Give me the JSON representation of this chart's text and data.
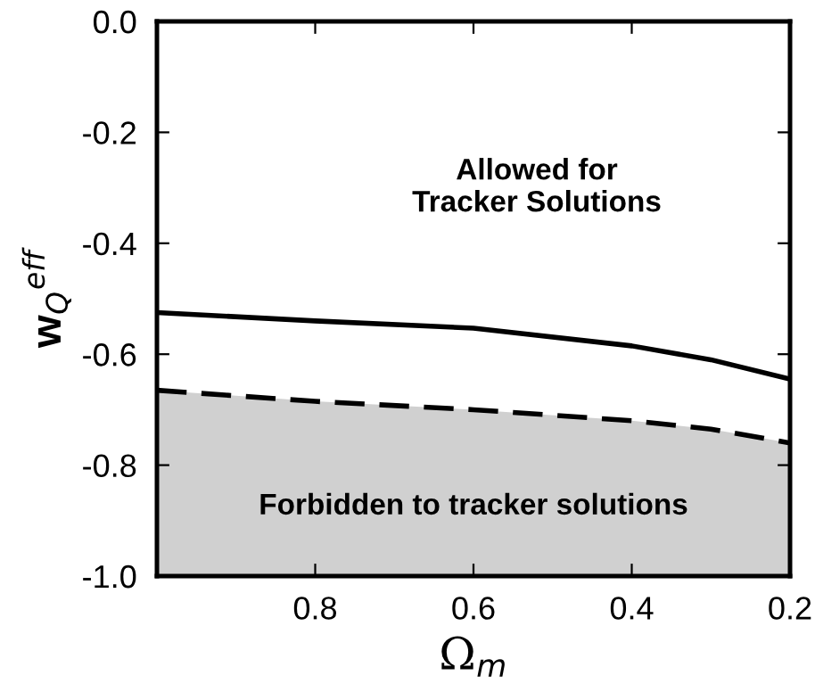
{
  "chart_data": {
    "type": "line",
    "xlabel": "Ω$_{m}$",
    "ylabel": "w$_{Q}$$^{eff}$",
    "x": [
      1.0,
      0.8,
      0.6,
      0.4,
      0.3,
      0.2
    ],
    "series": [
      {
        "color": "#000000",
        "line_style": "dashed",
        "values": [
          -0.665,
          -0.685,
          -0.7,
          -0.72,
          -0.735,
          -0.76
        ],
        "lower": [
          -1.0,
          -1.0,
          -1.0,
          -1.0,
          -1.0,
          -1.0
        ],
        "upper": [
          -0.665,
          -0.685,
          -0.7,
          -0.72,
          -0.735,
          -0.76
        ]
      },
      {
        "color": "#000000",
        "line_style": "solid",
        "values": [
          -0.525,
          -0.54,
          -0.553,
          -0.585,
          -0.61,
          -0.645
        ]
      }
    ],
    "xlim": [
      1.0,
      0.2
    ],
    "xticks": [
      0.8,
      0.6,
      0.4,
      0.2
    ],
    "ylim": [
      -1.0,
      0.0
    ],
    "yticks": [
      {
        "value": -1.0,
        "label": "-1.0"
      },
      {
        "value": -0.8,
        "label": "-0.8"
      },
      {
        "value": -0.6,
        "label": "-0.6"
      },
      {
        "value": -0.4,
        "label": "-0.4"
      },
      {
        "value": -0.2,
        "label": "-0.2"
      },
      {
        "value": 0.0,
        "label": "0.0"
      }
    ],
    "annotations": [
      "Allowed for\nTracker Solutions",
      "Forbidden to tracker solutions"
    ],
    "grid": false,
    "legend": false
  }
}
